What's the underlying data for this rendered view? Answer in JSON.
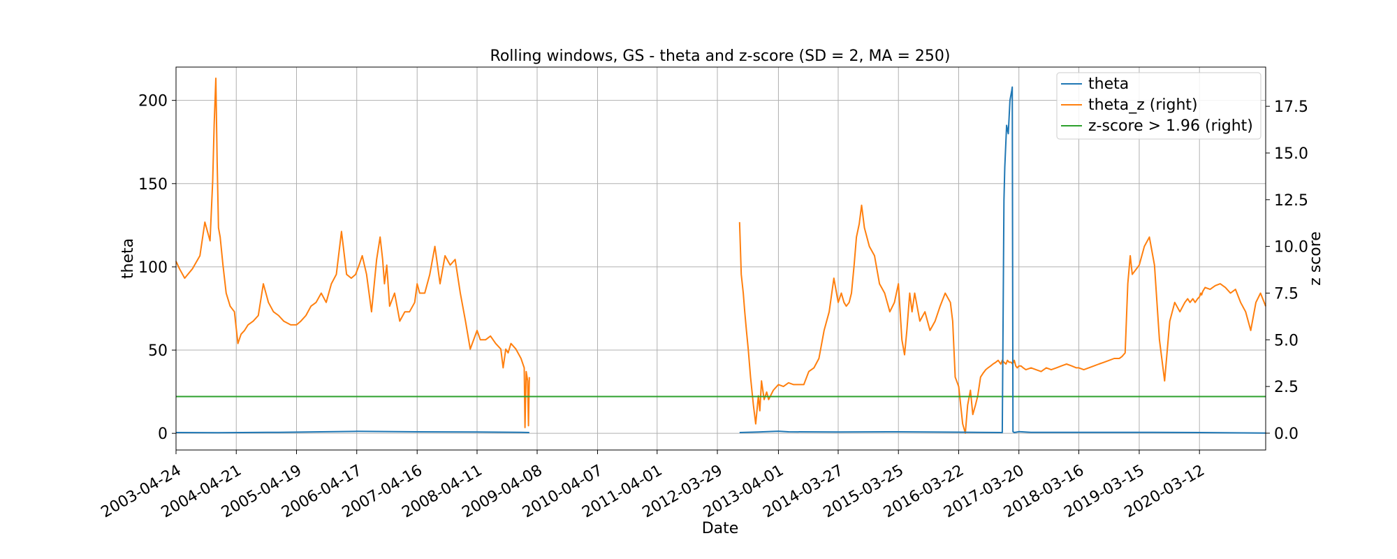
{
  "chart_data": {
    "type": "line",
    "title": "Rolling windows, GS - theta and z-score (SD = 2, MA = 250)",
    "xlabel": "Date",
    "ylabel": "theta",
    "y2label": "z score",
    "xlim": [
      "2003-04-24",
      "2021-04-15"
    ],
    "ylim": [
      -10,
      220
    ],
    "y2lim": [
      -0.9,
      19.6
    ],
    "x_ticks": [
      "2003-04-24",
      "2004-04-21",
      "2005-04-19",
      "2006-04-17",
      "2007-04-16",
      "2008-04-11",
      "2009-04-08",
      "2010-04-07",
      "2011-04-01",
      "2012-03-29",
      "2013-04-01",
      "2014-03-27",
      "2015-03-25",
      "2016-03-22",
      "2017-03-20",
      "2018-03-16",
      "2019-03-15",
      "2020-03-12"
    ],
    "y_ticks": [
      0,
      50,
      100,
      150,
      200
    ],
    "y2_ticks": [
      "0.0",
      "2.5",
      "5.0",
      "7.5",
      "10.0",
      "12.5",
      "15.0",
      "17.5"
    ],
    "grid": true,
    "legend_position": "top-right",
    "colors": {
      "theta": "#1f77b4",
      "theta_z": "#ff7f0e",
      "threshold": "#2ca02c"
    },
    "series": [
      {
        "name": "theta",
        "axis": "left",
        "segments": [
          {
            "x": [
              "2003-04-24",
              "2004-01-01",
              "2005-01-01",
              "2006-04-17",
              "2007-04-16",
              "2008-04-11",
              "2009-01-01",
              "2009-02-20"
            ],
            "y": [
              0.5,
              0.4,
              0.6,
              1.2,
              0.9,
              0.8,
              0.6,
              0.5
            ]
          },
          {
            "x": [
              "2012-08-10",
              "2012-12-01",
              "2013-04-01",
              "2013-06-01",
              "2014-03-27",
              "2015-03-25",
              "2016-03-22",
              "2016-12-10",
              "2016-12-20",
              "2016-12-25",
              "2017-01-05",
              "2017-01-15",
              "2017-01-25",
              "2017-02-05",
              "2017-02-08",
              "2017-02-12",
              "2017-02-20",
              "2017-03-20",
              "2017-06-01",
              "2018-03-16",
              "2019-03-15",
              "2020-03-12",
              "2020-12-01",
              "2021-04-15"
            ],
            "y": [
              0.5,
              0.8,
              1.3,
              0.9,
              0.8,
              0.9,
              0.7,
              0.5,
              140,
              160,
              185,
              180,
              200,
              206,
              208,
              1.0,
              0.5,
              1.0,
              0.6,
              0.6,
              0.6,
              0.5,
              0.3,
              0.2
            ]
          }
        ]
      },
      {
        "name": "theta_z (right)",
        "axis": "right",
        "segments": [
          {
            "x": [
              "2003-04-24",
              "2003-05-15",
              "2003-06-15",
              "2003-08-01",
              "2003-09-15",
              "2003-10-15",
              "2003-11-15",
              "2003-12-01",
              "2003-12-10",
              "2003-12-20",
              "2003-12-28",
              "2004-01-05",
              "2004-01-15",
              "2004-02-01",
              "2004-02-20",
              "2004-03-15",
              "2004-04-10",
              "2004-05-01",
              "2004-05-20",
              "2004-06-10",
              "2004-07-01",
              "2004-08-01",
              "2004-09-01",
              "2004-10-01",
              "2004-11-01",
              "2004-12-01",
              "2005-01-01",
              "2005-02-01",
              "2005-03-15",
              "2005-04-19",
              "2005-05-15",
              "2005-06-15",
              "2005-07-15",
              "2005-08-15",
              "2005-09-15",
              "2005-10-15",
              "2005-11-15",
              "2005-12-15",
              "2006-01-15",
              "2006-02-15",
              "2006-03-15",
              "2006-04-10",
              "2006-05-01",
              "2006-05-20",
              "2006-06-15",
              "2006-07-15",
              "2006-08-15",
              "2006-09-05",
              "2006-09-20",
              "2006-10-01",
              "2006-10-15",
              "2006-11-01",
              "2006-12-01",
              "2007-01-01",
              "2007-02-01",
              "2007-03-01",
              "2007-04-01",
              "2007-04-16",
              "2007-05-01",
              "2007-06-01",
              "2007-07-01",
              "2007-08-01",
              "2007-09-01",
              "2007-10-01",
              "2007-11-01",
              "2007-12-01",
              "2008-01-01",
              "2008-02-01",
              "2008-03-01",
              "2008-04-11",
              "2008-05-01",
              "2008-06-01",
              "2008-07-01",
              "2008-08-01",
              "2008-09-01",
              "2008-09-15",
              "2008-10-01",
              "2008-10-15",
              "2008-11-01",
              "2008-12-01",
              "2009-01-01",
              "2009-01-20",
              "2009-01-25",
              "2009-02-01",
              "2009-02-10",
              "2009-02-15",
              "2009-02-20"
            ],
            "y": [
              9.2,
              8.8,
              8.3,
              8.8,
              9.5,
              11.3,
              10.3,
              13.5,
              16.5,
              19.0,
              14.5,
              11.0,
              10.5,
              9.0,
              7.5,
              6.8,
              6.5,
              4.8,
              5.3,
              5.5,
              5.8,
              6.0,
              6.3,
              8.0,
              7.0,
              6.5,
              6.3,
              6.0,
              5.8,
              5.8,
              6.0,
              6.3,
              6.8,
              7.0,
              7.5,
              7.0,
              8.0,
              8.5,
              10.8,
              8.5,
              8.3,
              8.5,
              9.0,
              9.5,
              8.5,
              6.5,
              9.3,
              10.5,
              9.3,
              8.0,
              9.0,
              6.8,
              7.5,
              6.0,
              6.5,
              6.5,
              7.0,
              8.0,
              7.5,
              7.5,
              8.5,
              10.0,
              8.0,
              9.5,
              9.0,
              9.3,
              7.5,
              6.0,
              4.5,
              5.5,
              5.0,
              5.0,
              5.2,
              4.8,
              4.5,
              3.5,
              4.5,
              4.3,
              4.8,
              4.5,
              4.0,
              3.5,
              0.3,
              3.3,
              2.8,
              0.4,
              3.0
            ]
          },
          {
            "x": [
              "2012-08-10",
              "2012-08-20",
              "2012-09-01",
              "2012-09-10",
              "2012-09-20",
              "2012-10-01",
              "2012-10-15",
              "2012-11-01",
              "2012-11-15",
              "2012-12-01",
              "2012-12-10",
              "2012-12-20",
              "2013-01-05",
              "2013-01-20",
              "2013-02-01",
              "2013-03-01",
              "2013-04-01",
              "2013-05-01",
              "2013-06-01",
              "2013-07-01",
              "2013-08-01",
              "2013-09-01",
              "2013-10-01",
              "2013-11-01",
              "2013-12-01",
              "2014-01-01",
              "2014-02-01",
              "2014-03-01",
              "2014-03-27",
              "2014-04-15",
              "2014-05-01",
              "2014-05-15",
              "2014-06-01",
              "2014-06-15",
              "2014-07-01",
              "2014-07-15",
              "2014-08-01",
              "2014-08-15",
              "2014-09-01",
              "2014-10-01",
              "2014-11-01",
              "2014-12-01",
              "2015-01-01",
              "2015-02-01",
              "2015-03-01",
              "2015-03-25",
              "2015-04-15",
              "2015-05-01",
              "2015-05-15",
              "2015-06-01",
              "2015-06-15",
              "2015-07-01",
              "2015-08-01",
              "2015-09-01",
              "2015-10-01",
              "2015-11-01",
              "2015-12-01",
              "2016-01-01",
              "2016-02-01",
              "2016-02-15",
              "2016-03-01",
              "2016-03-22",
              "2016-04-15",
              "2016-05-01",
              "2016-05-15",
              "2016-06-01",
              "2016-06-15",
              "2016-07-01",
              "2016-07-15",
              "2016-08-01",
              "2016-08-15",
              "2016-09-01",
              "2016-09-15",
              "2016-10-01",
              "2016-10-15",
              "2016-11-01",
              "2016-11-15",
              "2016-12-01",
              "2016-12-10",
              "2016-12-20",
              "2017-01-01",
              "2017-01-10",
              "2017-01-20",
              "2017-02-01",
              "2017-02-10",
              "2017-02-20",
              "2017-03-01",
              "2017-03-10",
              "2017-03-20",
              "2017-04-01",
              "2017-04-15",
              "2017-05-01",
              "2017-06-01",
              "2017-07-01",
              "2017-08-01",
              "2017-09-01",
              "2017-10-01",
              "2017-11-01",
              "2017-12-01",
              "2018-01-01",
              "2018-02-01",
              "2018-03-01",
              "2018-03-16",
              "2018-04-15",
              "2018-05-15",
              "2018-06-15",
              "2018-07-15",
              "2018-08-15",
              "2018-09-15",
              "2018-10-15",
              "2018-11-15",
              "2018-12-01",
              "2018-12-20",
              "2019-01-05",
              "2019-01-20",
              "2019-02-01",
              "2019-03-15",
              "2019-04-15",
              "2019-05-15",
              "2019-06-15",
              "2019-07-15",
              "2019-08-15",
              "2019-09-15",
              "2019-10-15",
              "2019-11-15",
              "2019-12-15",
              "2020-01-01",
              "2020-01-15",
              "2020-02-01",
              "2020-02-15",
              "2020-03-01",
              "2020-03-12",
              "2020-03-20",
              "2020-03-25",
              "2020-04-01",
              "2020-04-15",
              "2020-05-15",
              "2020-06-15",
              "2020-07-15",
              "2020-08-15",
              "2020-09-15",
              "2020-10-15",
              "2020-11-15",
              "2020-12-15",
              "2021-01-15",
              "2021-02-15",
              "2021-03-15",
              "2021-04-15"
            ],
            "y": [
              11.3,
              8.5,
              7.5,
              6.5,
              5.5,
              4.5,
              3.0,
              1.5,
              0.5,
              2.0,
              1.2,
              2.8,
              1.8,
              2.2,
              1.8,
              2.3,
              2.6,
              2.5,
              2.7,
              2.6,
              2.6,
              2.6,
              3.3,
              3.5,
              4.0,
              5.5,
              6.5,
              8.3,
              7.0,
              7.5,
              7.0,
              6.8,
              7.0,
              7.5,
              9.0,
              10.5,
              11.2,
              12.2,
              11.0,
              10.0,
              9.5,
              8.0,
              7.5,
              6.5,
              7.0,
              8.0,
              5.0,
              4.2,
              5.5,
              7.5,
              6.5,
              7.5,
              6.0,
              6.5,
              5.5,
              6.0,
              6.8,
              7.5,
              7.0,
              6.0,
              3.0,
              2.5,
              0.5,
              0.0,
              1.5,
              2.3,
              1.0,
              1.5,
              2.0,
              3.0,
              3.2,
              3.4,
              3.5,
              3.6,
              3.7,
              3.8,
              3.9,
              3.7,
              3.9,
              3.8,
              3.7,
              3.9,
              3.8,
              3.8,
              3.7,
              3.9,
              3.6,
              3.5,
              3.6,
              3.6,
              3.5,
              3.4,
              3.5,
              3.4,
              3.3,
              3.5,
              3.4,
              3.5,
              3.6,
              3.7,
              3.6,
              3.5,
              3.5,
              3.4,
              3.5,
              3.6,
              3.7,
              3.8,
              3.9,
              4.0,
              4.0,
              4.1,
              4.3,
              8.0,
              9.5,
              8.5,
              9.0,
              10.0,
              10.5,
              9.0,
              5.0,
              2.8,
              6.0,
              7.0,
              6.5,
              7.0,
              7.2,
              7.0,
              7.2,
              7.0,
              7.2,
              7.3,
              7.5,
              7.4,
              7.6,
              7.8,
              7.7,
              7.9,
              8.0,
              7.8,
              7.5,
              7.7,
              7.0,
              6.5,
              5.5,
              7.0,
              7.5,
              6.8
            ]
          }
        ]
      },
      {
        "name": "z-score > 1.96 (right)",
        "axis": "right",
        "segments": [
          {
            "x": [
              "2003-04-24",
              "2021-04-15"
            ],
            "y": [
              1.96,
              1.96
            ]
          }
        ]
      }
    ]
  }
}
